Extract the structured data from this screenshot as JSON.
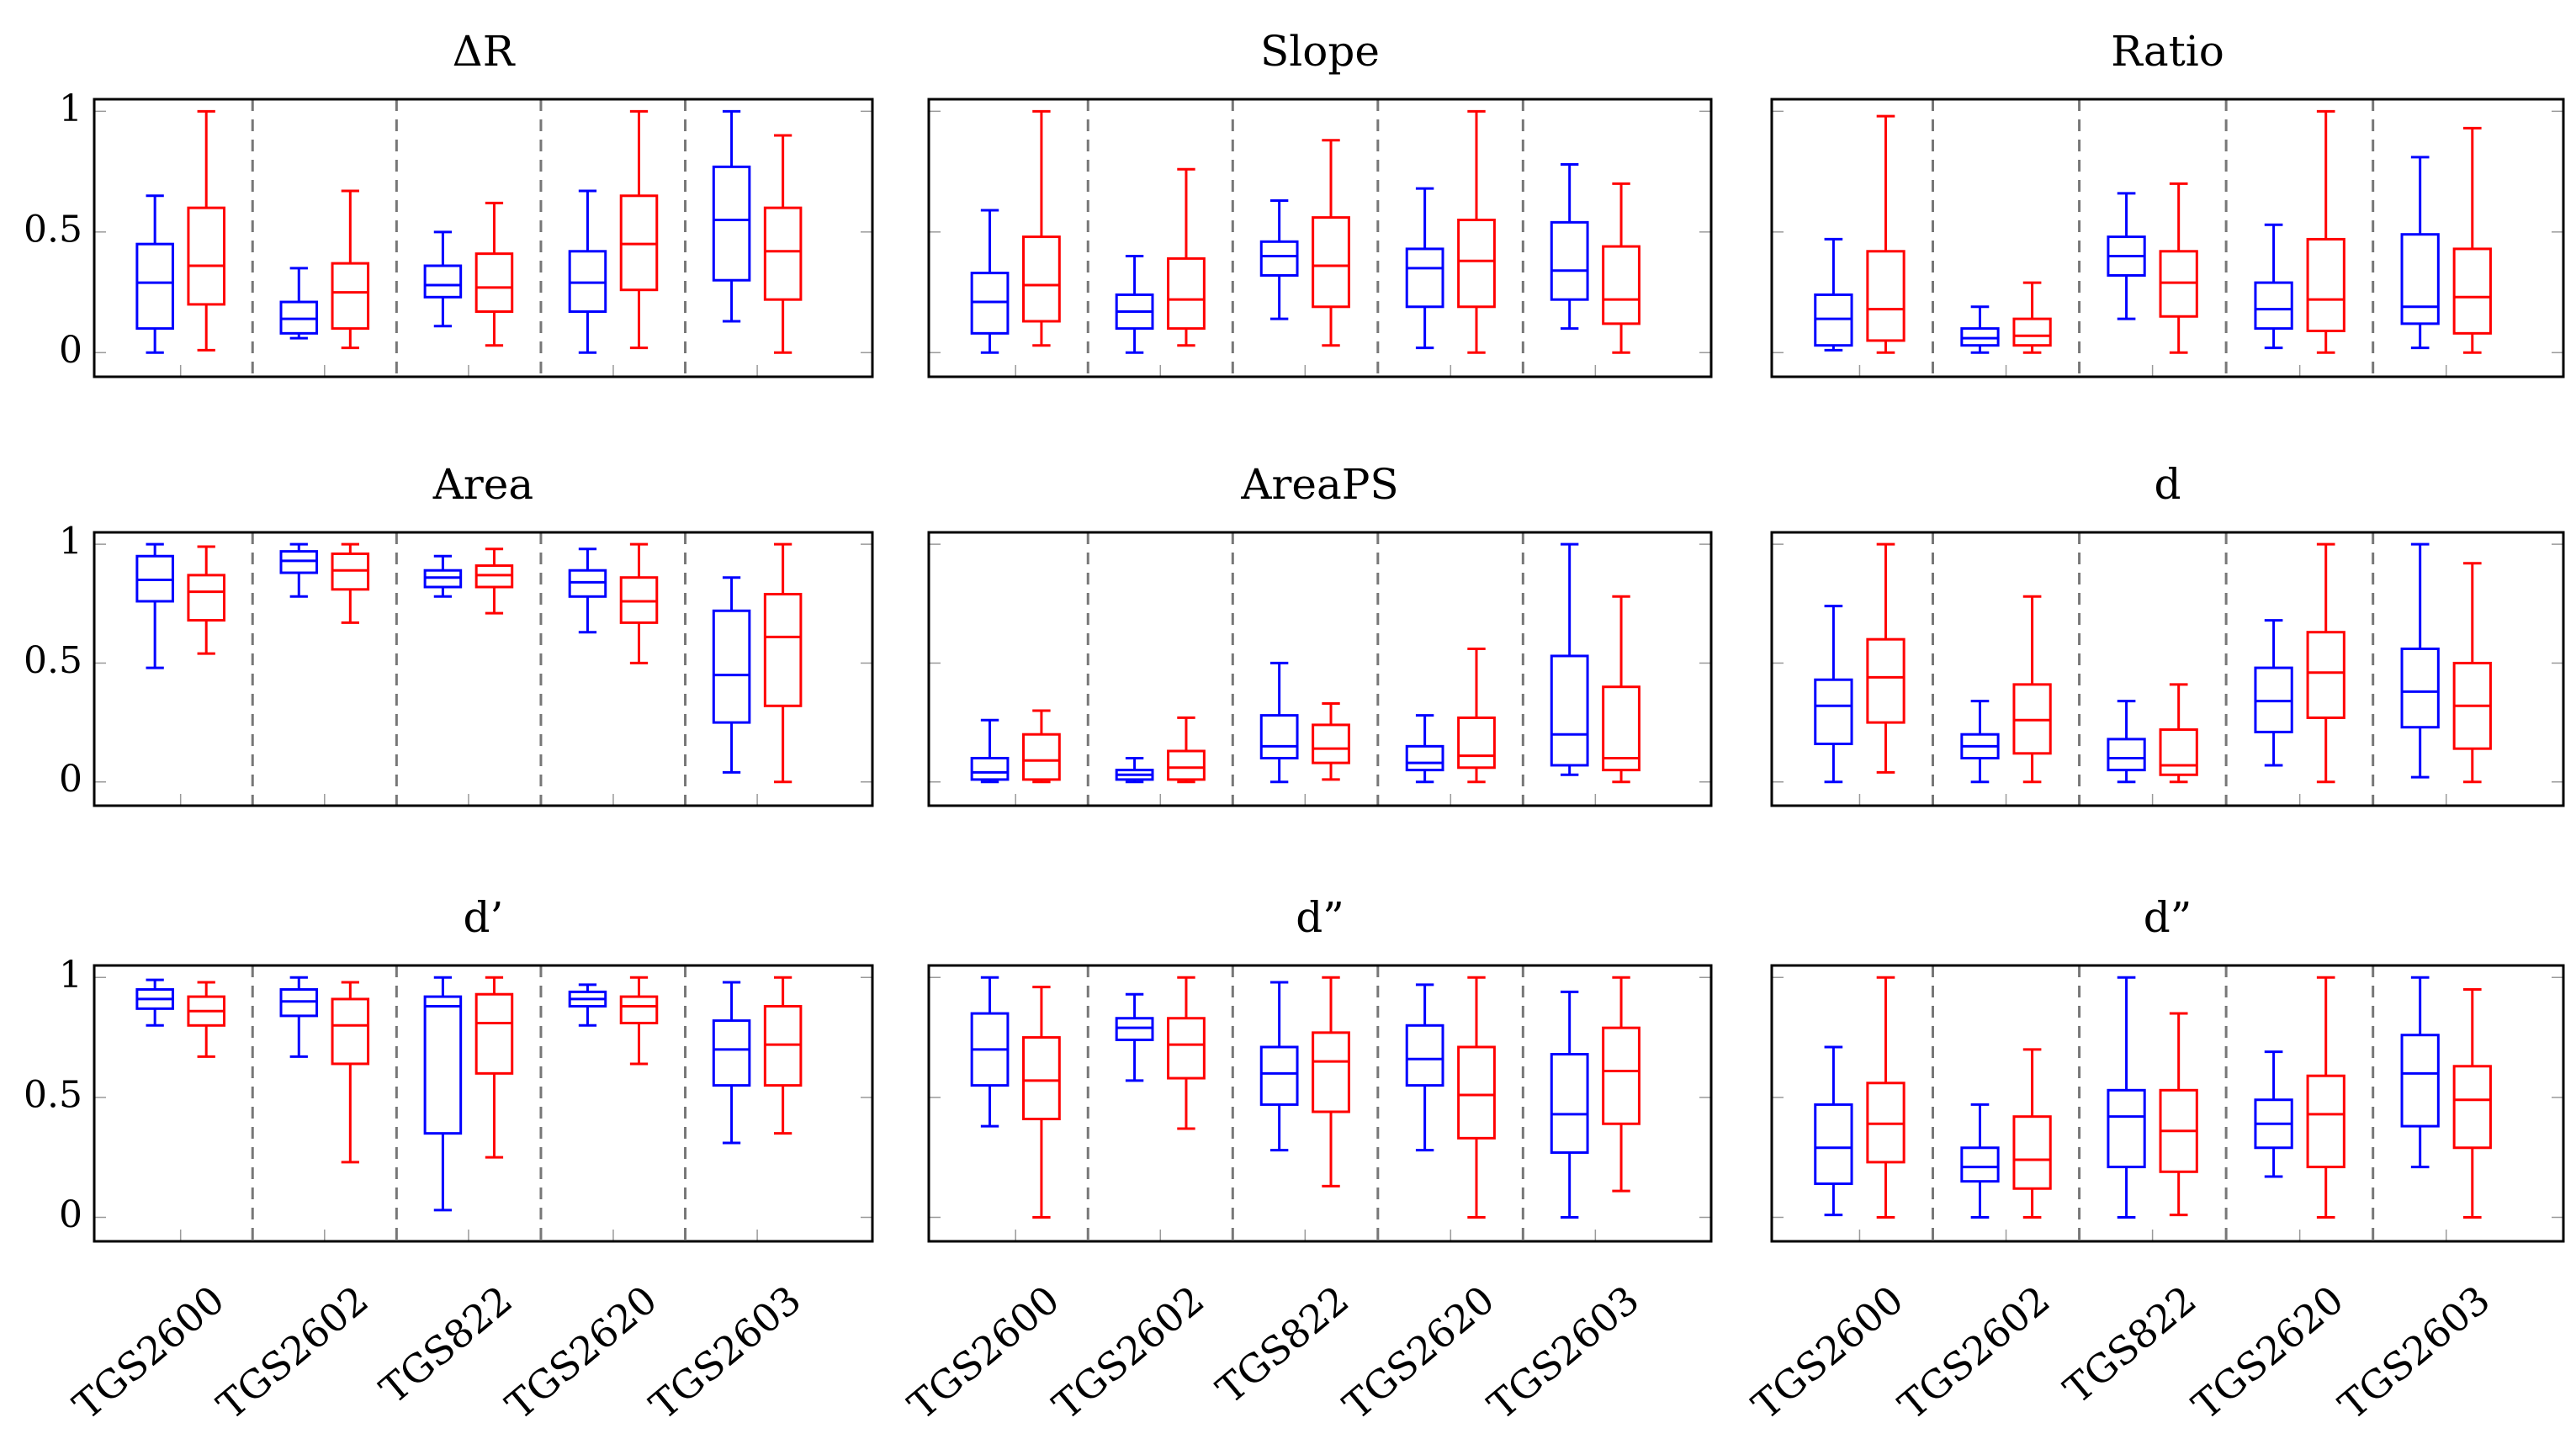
{
  "colors": {
    "blue": "#0000ff",
    "red": "#ff0000",
    "separator": "#777777"
  },
  "chart_data": [
    {
      "type": "boxplot",
      "title": "ΔR",
      "ylim": [
        -0.1,
        1.05
      ],
      "yticks": [
        "0",
        "0.5",
        "1"
      ],
      "show_yticks": true,
      "categories": [
        "TGS2600",
        "TGS2602",
        "TGS822",
        "TGS2620",
        "TGS2603"
      ],
      "series": [
        {
          "name": "blue",
          "boxes": [
            [
              0.0,
              0.1,
              0.29,
              0.45,
              0.65
            ],
            [
              0.06,
              0.08,
              0.14,
              0.21,
              0.35
            ],
            [
              0.11,
              0.23,
              0.28,
              0.36,
              0.5
            ],
            [
              0.0,
              0.17,
              0.29,
              0.42,
              0.67
            ],
            [
              0.13,
              0.3,
              0.55,
              0.77,
              1.0
            ]
          ]
        },
        {
          "name": "red",
          "boxes": [
            [
              0.01,
              0.2,
              0.36,
              0.6,
              1.0
            ],
            [
              0.02,
              0.1,
              0.25,
              0.37,
              0.67
            ],
            [
              0.03,
              0.17,
              0.27,
              0.41,
              0.62
            ],
            [
              0.02,
              0.26,
              0.45,
              0.65,
              1.0
            ],
            [
              0.0,
              0.22,
              0.42,
              0.6,
              0.9
            ]
          ]
        }
      ]
    },
    {
      "type": "boxplot",
      "title": "Slope",
      "ylim": [
        -0.1,
        1.05
      ],
      "yticks": [
        "0",
        "0.5",
        "1"
      ],
      "show_yticks": false,
      "categories": [
        "TGS2600",
        "TGS2602",
        "TGS822",
        "TGS2620",
        "TGS2603"
      ],
      "series": [
        {
          "name": "blue",
          "boxes": [
            [
              0.0,
              0.08,
              0.21,
              0.33,
              0.59
            ],
            [
              0.0,
              0.1,
              0.17,
              0.24,
              0.4
            ],
            [
              0.14,
              0.32,
              0.4,
              0.46,
              0.63
            ],
            [
              0.02,
              0.19,
              0.35,
              0.43,
              0.68
            ],
            [
              0.1,
              0.22,
              0.34,
              0.54,
              0.78
            ]
          ]
        },
        {
          "name": "red",
          "boxes": [
            [
              0.03,
              0.13,
              0.28,
              0.48,
              1.0
            ],
            [
              0.03,
              0.1,
              0.22,
              0.39,
              0.76
            ],
            [
              0.03,
              0.19,
              0.36,
              0.56,
              0.88
            ],
            [
              0.0,
              0.19,
              0.38,
              0.55,
              1.0
            ],
            [
              0.0,
              0.12,
              0.22,
              0.44,
              0.7
            ]
          ]
        }
      ]
    },
    {
      "type": "boxplot",
      "title": "Ratio",
      "ylim": [
        -0.1,
        1.05
      ],
      "yticks": [
        "0",
        "0.5",
        "1"
      ],
      "show_yticks": false,
      "categories": [
        "TGS2600",
        "TGS2602",
        "TGS822",
        "TGS2620",
        "TGS2603"
      ],
      "series": [
        {
          "name": "blue",
          "boxes": [
            [
              0.01,
              0.03,
              0.14,
              0.24,
              0.47
            ],
            [
              0.0,
              0.03,
              0.06,
              0.1,
              0.19
            ],
            [
              0.14,
              0.32,
              0.4,
              0.48,
              0.66
            ],
            [
              0.02,
              0.1,
              0.18,
              0.29,
              0.53
            ],
            [
              0.02,
              0.12,
              0.19,
              0.49,
              0.81
            ]
          ]
        },
        {
          "name": "red",
          "boxes": [
            [
              0.0,
              0.05,
              0.18,
              0.42,
              0.98
            ],
            [
              0.0,
              0.03,
              0.07,
              0.14,
              0.29
            ],
            [
              0.0,
              0.15,
              0.29,
              0.42,
              0.7
            ],
            [
              0.0,
              0.09,
              0.22,
              0.47,
              1.0
            ],
            [
              0.0,
              0.08,
              0.23,
              0.43,
              0.93
            ]
          ]
        }
      ]
    },
    {
      "type": "boxplot",
      "title": "Area",
      "ylim": [
        -0.1,
        1.05
      ],
      "yticks": [
        "0",
        "0.5",
        "1"
      ],
      "show_yticks": true,
      "categories": [
        "TGS2600",
        "TGS2602",
        "TGS822",
        "TGS2620",
        "TGS2603"
      ],
      "series": [
        {
          "name": "blue",
          "boxes": [
            [
              0.48,
              0.76,
              0.85,
              0.95,
              1.0
            ],
            [
              0.78,
              0.88,
              0.93,
              0.97,
              1.0
            ],
            [
              0.78,
              0.82,
              0.86,
              0.89,
              0.95
            ],
            [
              0.63,
              0.78,
              0.84,
              0.89,
              0.98
            ],
            [
              0.04,
              0.25,
              0.45,
              0.72,
              0.86
            ]
          ]
        },
        {
          "name": "red",
          "boxes": [
            [
              0.54,
              0.68,
              0.8,
              0.87,
              0.99
            ],
            [
              0.67,
              0.81,
              0.89,
              0.96,
              1.0
            ],
            [
              0.71,
              0.82,
              0.87,
              0.91,
              0.98
            ],
            [
              0.5,
              0.67,
              0.76,
              0.86,
              1.0
            ],
            [
              0.0,
              0.32,
              0.61,
              0.79,
              1.0
            ]
          ]
        }
      ]
    },
    {
      "type": "boxplot",
      "title": "AreaPS",
      "ylim": [
        -0.1,
        1.05
      ],
      "yticks": [
        "0",
        "0.5",
        "1"
      ],
      "show_yticks": false,
      "categories": [
        "TGS2600",
        "TGS2602",
        "TGS822",
        "TGS2620",
        "TGS2603"
      ],
      "series": [
        {
          "name": "blue",
          "boxes": [
            [
              0.0,
              0.01,
              0.04,
              0.1,
              0.26
            ],
            [
              0.0,
              0.01,
              0.03,
              0.05,
              0.1
            ],
            [
              0.0,
              0.1,
              0.15,
              0.28,
              0.5
            ],
            [
              0.0,
              0.05,
              0.08,
              0.15,
              0.28
            ],
            [
              0.03,
              0.07,
              0.2,
              0.53,
              1.0
            ]
          ]
        },
        {
          "name": "red",
          "boxes": [
            [
              0.0,
              0.01,
              0.09,
              0.2,
              0.3
            ],
            [
              0.0,
              0.01,
              0.06,
              0.13,
              0.27
            ],
            [
              0.01,
              0.08,
              0.14,
              0.24,
              0.33
            ],
            [
              0.0,
              0.06,
              0.11,
              0.27,
              0.56
            ],
            [
              0.0,
              0.05,
              0.1,
              0.4,
              0.78
            ]
          ]
        }
      ]
    },
    {
      "type": "boxplot",
      "title": "d",
      "ylim": [
        -0.1,
        1.05
      ],
      "yticks": [
        "0",
        "0.5",
        "1"
      ],
      "show_yticks": false,
      "categories": [
        "TGS2600",
        "TGS2602",
        "TGS822",
        "TGS2620",
        "TGS2603"
      ],
      "series": [
        {
          "name": "blue",
          "boxes": [
            [
              0.0,
              0.16,
              0.32,
              0.43,
              0.74
            ],
            [
              0.0,
              0.1,
              0.15,
              0.2,
              0.34
            ],
            [
              0.0,
              0.05,
              0.1,
              0.18,
              0.34
            ],
            [
              0.07,
              0.21,
              0.34,
              0.48,
              0.68
            ],
            [
              0.02,
              0.23,
              0.38,
              0.56,
              1.0
            ]
          ]
        },
        {
          "name": "red",
          "boxes": [
            [
              0.04,
              0.25,
              0.44,
              0.6,
              1.0
            ],
            [
              0.0,
              0.12,
              0.26,
              0.41,
              0.78
            ],
            [
              0.0,
              0.03,
              0.07,
              0.22,
              0.41
            ],
            [
              0.0,
              0.27,
              0.46,
              0.63,
              1.0
            ],
            [
              0.0,
              0.14,
              0.32,
              0.5,
              0.92
            ]
          ]
        }
      ]
    },
    {
      "type": "boxplot",
      "title": "d’",
      "ylim": [
        -0.1,
        1.05
      ],
      "yticks": [
        "0",
        "0.5",
        "1"
      ],
      "show_yticks": true,
      "categories": [
        "TGS2600",
        "TGS2602",
        "TGS822",
        "TGS2620",
        "TGS2603"
      ],
      "series": [
        {
          "name": "blue",
          "boxes": [
            [
              0.8,
              0.87,
              0.91,
              0.95,
              0.99
            ],
            [
              0.67,
              0.84,
              0.9,
              0.95,
              1.0
            ],
            [
              0.03,
              0.35,
              0.88,
              0.92,
              1.0
            ],
            [
              0.8,
              0.88,
              0.91,
              0.94,
              0.97
            ],
            [
              0.31,
              0.55,
              0.7,
              0.82,
              0.98
            ]
          ]
        },
        {
          "name": "red",
          "boxes": [
            [
              0.67,
              0.8,
              0.86,
              0.92,
              0.98
            ],
            [
              0.23,
              0.64,
              0.8,
              0.91,
              0.98
            ],
            [
              0.25,
              0.6,
              0.81,
              0.93,
              1.0
            ],
            [
              0.64,
              0.81,
              0.88,
              0.92,
              1.0
            ],
            [
              0.35,
              0.55,
              0.72,
              0.88,
              1.0
            ]
          ]
        }
      ]
    },
    {
      "type": "boxplot",
      "title": "d”",
      "ylim": [
        -0.1,
        1.05
      ],
      "yticks": [
        "0",
        "0.5",
        "1"
      ],
      "show_yticks": false,
      "categories": [
        "TGS2600",
        "TGS2602",
        "TGS822",
        "TGS2620",
        "TGS2603"
      ],
      "series": [
        {
          "name": "blue",
          "boxes": [
            [
              0.38,
              0.55,
              0.7,
              0.85,
              1.0
            ],
            [
              0.57,
              0.74,
              0.79,
              0.83,
              0.93
            ],
            [
              0.28,
              0.47,
              0.6,
              0.71,
              0.98
            ],
            [
              0.28,
              0.55,
              0.66,
              0.8,
              0.97
            ],
            [
              0.0,
              0.27,
              0.43,
              0.68,
              0.94
            ]
          ]
        },
        {
          "name": "red",
          "boxes": [
            [
              0.0,
              0.41,
              0.57,
              0.75,
              0.96
            ],
            [
              0.37,
              0.58,
              0.72,
              0.83,
              1.0
            ],
            [
              0.13,
              0.44,
              0.65,
              0.77,
              1.0
            ],
            [
              0.0,
              0.33,
              0.51,
              0.71,
              1.0
            ],
            [
              0.11,
              0.39,
              0.61,
              0.79,
              1.0
            ]
          ]
        }
      ]
    },
    {
      "type": "boxplot",
      "title": "d”",
      "ylim": [
        -0.1,
        1.05
      ],
      "yticks": [
        "0",
        "0.5",
        "1"
      ],
      "show_yticks": false,
      "categories": [
        "TGS2600",
        "TGS2602",
        "TGS822",
        "TGS2620",
        "TGS2603"
      ],
      "series": [
        {
          "name": "blue",
          "boxes": [
            [
              0.01,
              0.14,
              0.29,
              0.47,
              0.71
            ],
            [
              0.0,
              0.15,
              0.21,
              0.29,
              0.47
            ],
            [
              0.0,
              0.21,
              0.42,
              0.53,
              1.0
            ],
            [
              0.17,
              0.29,
              0.39,
              0.49,
              0.69
            ],
            [
              0.21,
              0.38,
              0.6,
              0.76,
              1.0
            ]
          ]
        },
        {
          "name": "red",
          "boxes": [
            [
              0.0,
              0.23,
              0.39,
              0.56,
              1.0
            ],
            [
              0.0,
              0.12,
              0.24,
              0.42,
              0.7
            ],
            [
              0.01,
              0.19,
              0.36,
              0.53,
              0.85
            ],
            [
              0.0,
              0.21,
              0.43,
              0.59,
              1.0
            ],
            [
              0.0,
              0.29,
              0.49,
              0.63,
              0.95
            ]
          ]
        }
      ]
    }
  ]
}
